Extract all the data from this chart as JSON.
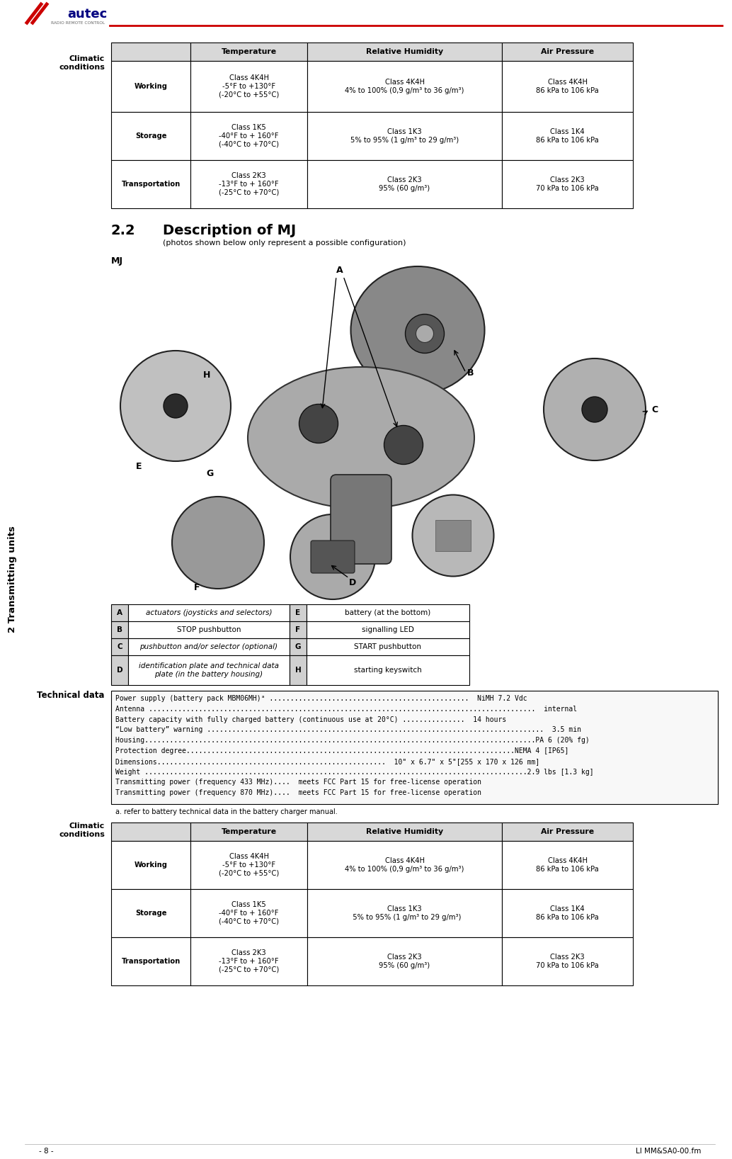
{
  "page_width": 10.34,
  "page_height": 16.36,
  "bg_color": "#ffffff",
  "red_line_color": "#cc0000",
  "sidebar_text": "2 Transmitting units",
  "section_label_climatic": "Climatic\nconditions",
  "section_22_num": "2.2",
  "section_22_title": "Description of MJ",
  "section_22_subtitle": "(photos shown below only represent a possible configuration)",
  "mj_label": "MJ",
  "technical_data_label": "Technical data",
  "footer_left": "- 8 -",
  "footer_right": "LI MM&SA0-00.fm",
  "table1_headers": [
    "",
    "Temperature",
    "Relative Humidity",
    "Air Pressure"
  ],
  "table1_rows": [
    [
      "Working",
      "Class 4K4H\n-5°F to +130°F\n(-20°C to +55°C)",
      "Class 4K4H\n4% to 100% (0,9 g/m³ to 36 g/m³)",
      "Class 4K4H\n86 kPa to 106 kPa"
    ],
    [
      "Storage",
      "Class 1K5\n-40°F to + 160°F\n(-40°C to +70°C)",
      "Class 1K3\n5% to 95% (1 g/m³ to 29 g/m³)",
      "Class 1K4\n86 kPa to 106 kPa"
    ],
    [
      "Transportation",
      "Class 2K3\n-13°F to + 160°F\n(-25°C to +70°C)",
      "Class 2K3\n95% (60 g/m³)",
      "Class 2K3\n70 kPa to 106 kPa"
    ]
  ],
  "legend_rows": [
    [
      "A",
      "actuators (joysticks and selectors)",
      "E",
      "battery (at the bottom)"
    ],
    [
      "B",
      "STOP pushbutton",
      "F",
      "signalling LED"
    ],
    [
      "C",
      "pushbutton and/or selector (optional)",
      "G",
      "START pushbutton"
    ],
    [
      "D",
      "identification plate and technical data\nplate (in the battery housing)",
      "H",
      "starting keyswitch"
    ]
  ],
  "tech_lines": [
    "Power supply (battery pack MBM06MH)ᵃ ................................................  NiMH 7.2 Vdc",
    "Antenna .............................................................................................  internal",
    "Battery capacity with fully charged battery (continuous use at 20°C) ...............  14 hours",
    "“Low battery” warning .................................................................................  3.5 min",
    "Housing..............................................................................................PA 6 (20% fg)",
    "Protection degree...............................................................................NEMA 4 [IP65]",
    "Dimensions.......................................................  10\" x 6.7\" x 5\"[255 x 170 x 126 mm]",
    "Weight ............................................................................................2.9 lbs [1.3 kg]",
    "Transmitting power (frequency 433 MHz)....  meets FCC Part 15 for free-license operation",
    "Transmitting power (frequency 870 MHz)....  meets FCC Part 15 for free-license operation"
  ],
  "tech_footnote": "a. refer to battery technical data in the battery charger manual.",
  "table2_headers": [
    "",
    "Temperature",
    "Relative Humidity",
    "Air Pressure"
  ],
  "table2_rows": [
    [
      "Working",
      "Class 4K4H\n-5°F to +130°F\n(-20°C to +55°C)",
      "Class 4K4H\n4% to 100% (0,9 g/m³ to 36 g/m³)",
      "Class 4K4H\n86 kPa to 106 kPa"
    ],
    [
      "Storage",
      "Class 1K5\n-40°F to + 160°F\n(-40°C to +70°C)",
      "Class 1K3\n  5% to 95% (1 g/m³ to 29 g/m³)",
      "Class 1K4\n86 kPa to 106 kPa"
    ],
    [
      "Transportation",
      "Class 2K3\n-13°F to + 160°F\n(-25°C to +70°C)",
      "Class 2K3\n95% (60 g/m³)",
      "Class 2K3\n70 kPa to 106 kPa"
    ]
  ],
  "section2_label_climatic": "Climatic\nconditions",
  "logo_slash_color": "#cc0000",
  "logo_text_color": "#000080",
  "logo_sub_color": "#666666"
}
